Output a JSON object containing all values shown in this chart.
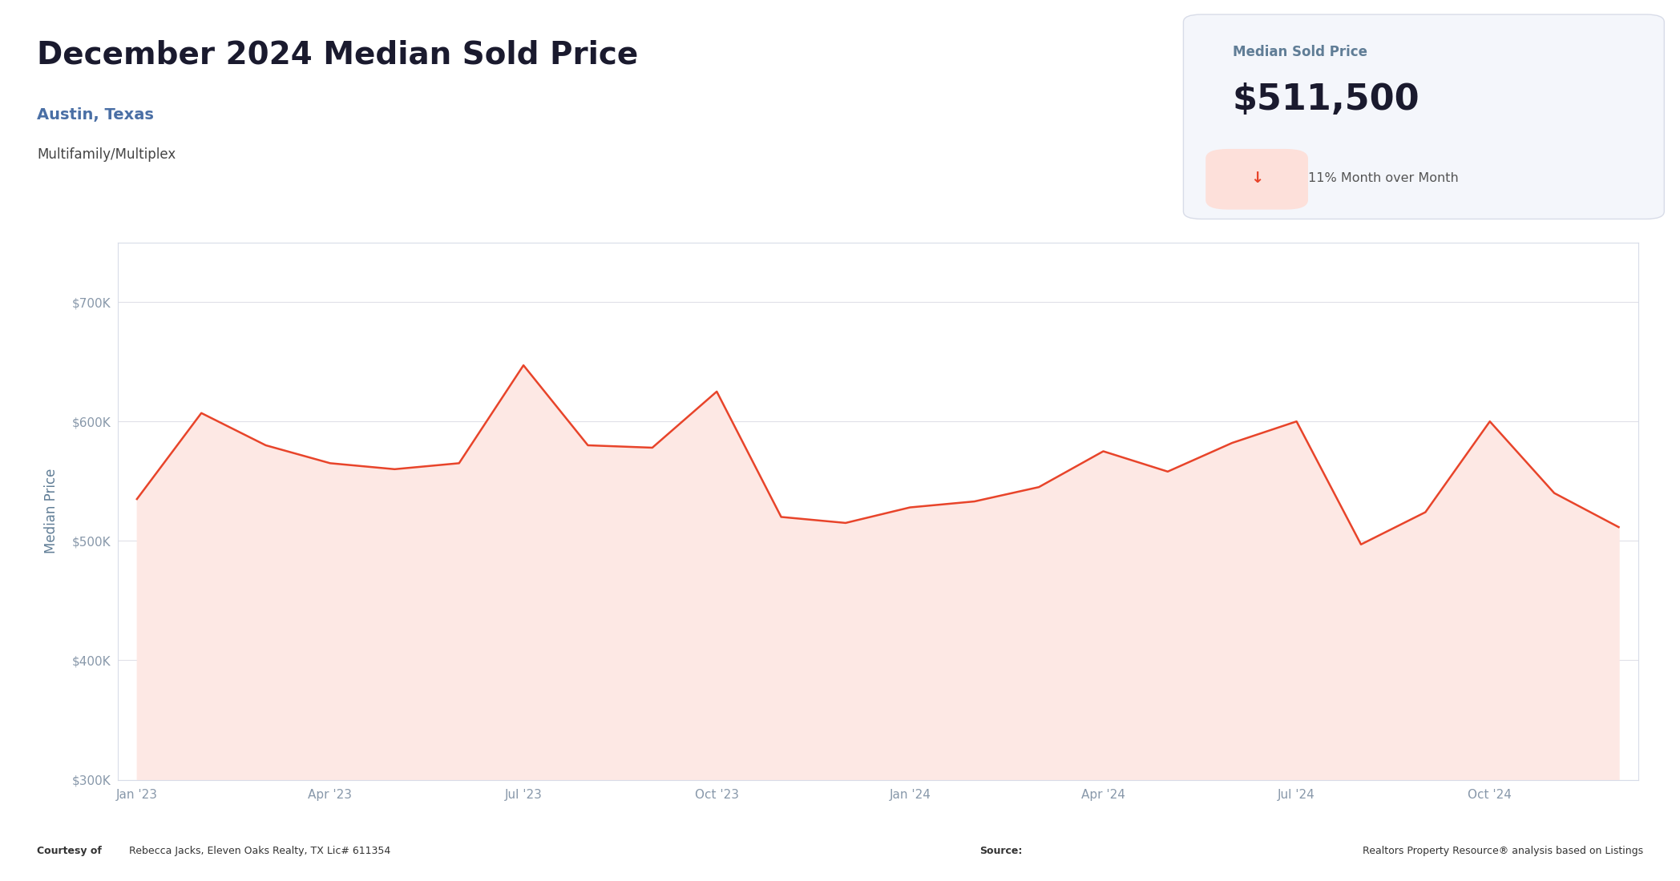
{
  "title": "December 2024 Median Sold Price",
  "subtitle1": "Austin, Texas",
  "subtitle2": "Multifamily/Multiplex",
  "stat_label": "Median Sold Price",
  "stat_value": "$511,500",
  "ylabel": "Median Price",
  "footer_left_bold": "Courtesy of",
  "footer_left_normal": " Rebecca Jacks, Eleven Oaks Realty, TX Lic# 611354",
  "footer_right_bold": "Source:",
  "footer_right_normal": " Realtors Property Resource® analysis based on Listings",
  "x_labels": [
    "Jan '23",
    "Apr '23",
    "Jul '23",
    "Oct '23",
    "Jan '24",
    "Apr '24",
    "Jul '24",
    "Oct '24"
  ],
  "x_positions": [
    0,
    3,
    6,
    9,
    12,
    15,
    18,
    21
  ],
  "values": [
    535000,
    607000,
    580000,
    565000,
    560000,
    565000,
    647000,
    580000,
    578000,
    625000,
    520000,
    515000,
    528000,
    533000,
    545000,
    575000,
    558000,
    582000,
    600000,
    497000,
    524000,
    600000,
    540000,
    511500
  ],
  "line_color": "#e8442a",
  "fill_color": "#fde8e4",
  "bg_color": "#ffffff",
  "chart_bg": "#ffffff",
  "grid_color": "#e0e0e8",
  "axis_label_color": "#607d96",
  "tick_color": "#8898aa",
  "title_color": "#1a1a2e",
  "subtitle1_color": "#4a6fa5",
  "subtitle2_color": "#444444",
  "stat_box_bg": "#f4f6fb",
  "stat_box_border": "#d8dce8",
  "stat_label_color": "#607d96",
  "stat_value_color": "#1a1a2e",
  "stat_change_text_color": "#555555",
  "stat_change_arrow_color": "#e8442a",
  "stat_change_circle_color": "#fde0da",
  "ylim_min": 300000,
  "ylim_max": 750000,
  "yticks": [
    300000,
    400000,
    500000,
    600000,
    700000
  ]
}
